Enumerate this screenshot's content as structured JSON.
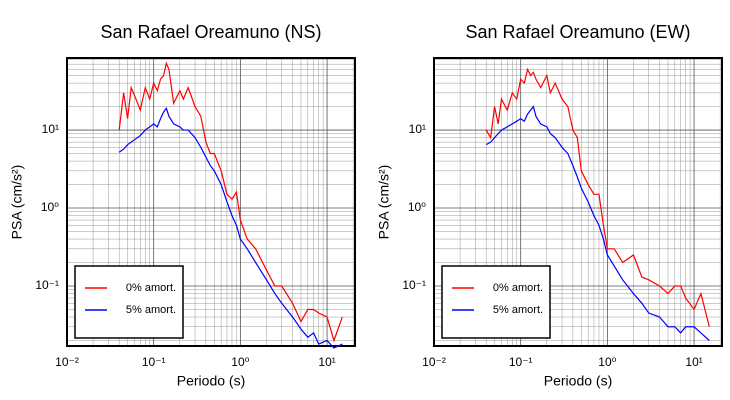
{
  "chart_data": [
    {
      "type": "line",
      "title": "San Rafael Oreamuno (NS)",
      "x_label": "Periodo (s)",
      "y_label": "PSA (cm/s²)",
      "log_x": true,
      "log_y": true,
      "grid": true,
      "legend": "lower left",
      "xlim": [
        0.01,
        21
      ],
      "ylim": [
        0.017,
        84
      ],
      "xticks": [
        {
          "value": 0.01,
          "label": "10⁻²"
        },
        {
          "value": 0.1,
          "label": "10⁻¹"
        },
        {
          "value": 1,
          "label": "10⁰"
        },
        {
          "value": 10,
          "label": "10¹"
        }
      ],
      "yticks": [
        {
          "value": 0.1,
          "label": "10⁻¹"
        },
        {
          "value": 1,
          "label": "10⁰"
        },
        {
          "value": 10,
          "label": "10¹"
        }
      ],
      "x": [
        0.04,
        0.045,
        0.05,
        0.055,
        0.06,
        0.07,
        0.08,
        0.09,
        0.1,
        0.11,
        0.12,
        0.13,
        0.14,
        0.15,
        0.17,
        0.2,
        0.22,
        0.25,
        0.3,
        0.35,
        0.4,
        0.45,
        0.5,
        0.6,
        0.7,
        0.8,
        0.9,
        1,
        1.2,
        1.5,
        2,
        2.5,
        3,
        4,
        5,
        6,
        7,
        8,
        10,
        12,
        15
      ],
      "series": [
        {
          "name": "0% amort.",
          "color": "#ff0000",
          "values": [
            10,
            30,
            14,
            35,
            28,
            18,
            35,
            25,
            40,
            32,
            45,
            50,
            72,
            60,
            22,
            32,
            25,
            35,
            20,
            15,
            7,
            5,
            5,
            3,
            1.5,
            1.3,
            1.6,
            0.7,
            0.4,
            0.3,
            0.16,
            0.1,
            0.1,
            0.06,
            0.035,
            0.05,
            0.05,
            0.045,
            0.04,
            0.02,
            0.04
          ]
        },
        {
          "name": "5% amort.",
          "color": "#0000ff",
          "values": [
            5.2,
            5.7,
            6.5,
            7,
            7.5,
            8.5,
            10,
            11,
            12,
            11,
            14,
            17,
            19,
            15,
            12,
            11,
            10,
            10,
            8,
            6,
            4.5,
            3.5,
            3,
            2,
            1.2,
            0.8,
            0.6,
            0.4,
            0.3,
            0.2,
            0.12,
            0.08,
            0.06,
            0.04,
            0.028,
            0.022,
            0.025,
            0.018,
            0.02,
            0.016,
            0.018
          ]
        }
      ]
    },
    {
      "type": "line",
      "title": "San Rafael Oreamuno (EW)",
      "x_label": "Periodo (s)",
      "y_label": "PSA (cm/s²)",
      "log_x": true,
      "log_y": true,
      "grid": true,
      "legend": "lower left",
      "xlim": [
        0.01,
        21
      ],
      "ylim": [
        0.017,
        84
      ],
      "xticks": [
        {
          "value": 0.01,
          "label": "10⁻²"
        },
        {
          "value": 0.1,
          "label": "10⁻¹"
        },
        {
          "value": 1,
          "label": "10⁰"
        },
        {
          "value": 10,
          "label": "10¹"
        }
      ],
      "yticks": [
        {
          "value": 0.1,
          "label": "10⁻¹"
        },
        {
          "value": 1,
          "label": "10⁰"
        },
        {
          "value": 10,
          "label": "10¹"
        }
      ],
      "x": [
        0.04,
        0.045,
        0.05,
        0.055,
        0.06,
        0.07,
        0.08,
        0.09,
        0.1,
        0.11,
        0.12,
        0.13,
        0.14,
        0.15,
        0.17,
        0.2,
        0.22,
        0.25,
        0.3,
        0.35,
        0.4,
        0.45,
        0.5,
        0.6,
        0.7,
        0.8,
        0.9,
        1,
        1.2,
        1.5,
        2,
        2.5,
        3,
        4,
        5,
        6,
        7,
        8,
        10,
        12,
        15
      ],
      "series": [
        {
          "name": "0% amort.",
          "color": "#ff0000",
          "values": [
            10,
            8,
            20,
            12,
            25,
            18,
            30,
            25,
            45,
            40,
            60,
            50,
            55,
            45,
            35,
            50,
            30,
            40,
            25,
            20,
            10,
            8,
            3,
            2,
            1.5,
            1.5,
            0.6,
            0.3,
            0.3,
            0.2,
            0.25,
            0.13,
            0.12,
            0.1,
            0.08,
            0.1,
            0.1,
            0.07,
            0.05,
            0.08,
            0.03
          ]
        },
        {
          "name": "5% amort.",
          "color": "#0000ff",
          "values": [
            6.5,
            7,
            8,
            9,
            10,
            11,
            12,
            13,
            14,
            13,
            16,
            18,
            20,
            15,
            12,
            11,
            9,
            8,
            6,
            5,
            3.5,
            2.5,
            1.8,
            1.2,
            0.8,
            0.6,
            0.4,
            0.25,
            0.18,
            0.12,
            0.08,
            0.06,
            0.045,
            0.04,
            0.03,
            0.03,
            0.025,
            0.03,
            0.03,
            0.025,
            0.02
          ]
        }
      ]
    }
  ]
}
